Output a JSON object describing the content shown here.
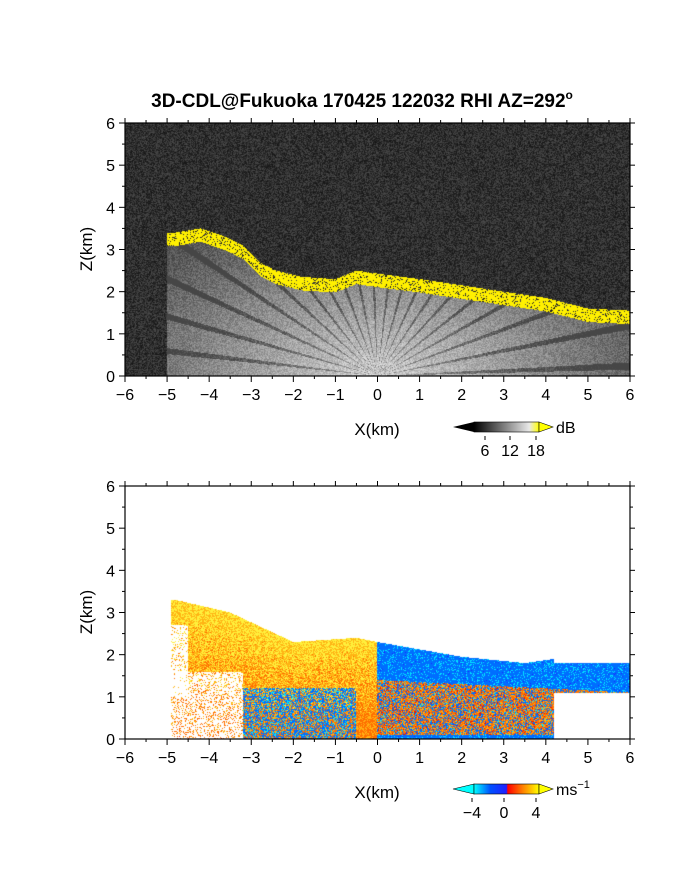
{
  "figure_title": "3D-CDL@Fukuoka 170425 122032 RHI AZ=292",
  "title_superscript": "o",
  "chart_data": [
    {
      "type": "heatmap",
      "variable": "backscatter",
      "title": "3D-CDL@Fukuoka 170425 122032 RHI AZ=292°",
      "xlabel": "X(km)",
      "ylabel": "Z(km)",
      "xlim": [
        -6,
        6
      ],
      "ylim": [
        0,
        6
      ],
      "xticks": [
        "−6",
        "−5",
        "−4",
        "−3",
        "−2",
        "−1",
        "0",
        "1",
        "2",
        "3",
        "4",
        "5",
        "6"
      ],
      "yticks": [
        "0",
        "1",
        "2",
        "3",
        "4",
        "5",
        "6"
      ],
      "colorbar": {
        "unit": "dB",
        "ticks": [
          "6",
          "12",
          "18"
        ],
        "range": [
          0,
          20
        ],
        "colors": [
          "#000000",
          "#ffffff",
          "#ffff00"
        ]
      },
      "features": {
        "high_backscatter_layer_top_km": [
          {
            "x": -4.8,
            "z": 3.2
          },
          {
            "x": -4.2,
            "z": 3.3
          },
          {
            "x": -3.6,
            "z": 3.1
          },
          {
            "x": -3.2,
            "z": 2.9
          },
          {
            "x": -2.8,
            "z": 2.5
          },
          {
            "x": -2.4,
            "z": 2.3
          },
          {
            "x": -1.8,
            "z": 2.15
          },
          {
            "x": -1.0,
            "z": 2.1
          },
          {
            "x": -0.5,
            "z": 2.3
          },
          {
            "x": 0.2,
            "z": 2.2
          },
          {
            "x": 1.0,
            "z": 2.1
          },
          {
            "x": 2.0,
            "z": 1.95
          },
          {
            "x": 3.0,
            "z": 1.8
          },
          {
            "x": 4.0,
            "z": 1.65
          },
          {
            "x": 5.0,
            "z": 1.4
          },
          {
            "x": 6.0,
            "z": 1.35
          }
        ]
      }
    },
    {
      "type": "heatmap",
      "variable": "radial_velocity",
      "xlabel": "X(km)",
      "ylabel": "Z(km)",
      "xlim": [
        -6,
        6
      ],
      "ylim": [
        0,
        6
      ],
      "xticks": [
        "−6",
        "−5",
        "−4",
        "−3",
        "−2",
        "−1",
        "0",
        "1",
        "2",
        "3",
        "4",
        "5",
        "6"
      ],
      "yticks": [
        "0",
        "1",
        "2",
        "3",
        "4",
        "5",
        "6"
      ],
      "colorbar": {
        "unit": "ms",
        "unit_superscript": "−1",
        "ticks": [
          "−4",
          "0",
          "4"
        ],
        "range": [
          -5,
          5
        ],
        "colors": [
          "#00ffff",
          "#0040ff",
          "#1a1aff",
          "#ff0000",
          "#ff8000",
          "#ffff00"
        ]
      },
      "features": {
        "positive_region_top_km": [
          {
            "x": -4.8,
            "z": 3.3
          },
          {
            "x": -3.5,
            "z": 3.0
          },
          {
            "x": -2.0,
            "z": 2.3
          },
          {
            "x": -0.5,
            "z": 2.4
          },
          {
            "x": 0.0,
            "z": 2.3
          }
        ],
        "negative_region_top_km": [
          {
            "x": 0.0,
            "z": 2.3
          },
          {
            "x": 2.0,
            "z": 1.95
          },
          {
            "x": 3.5,
            "z": 1.8
          },
          {
            "x": 4.2,
            "z": 1.9
          }
        ]
      }
    }
  ]
}
